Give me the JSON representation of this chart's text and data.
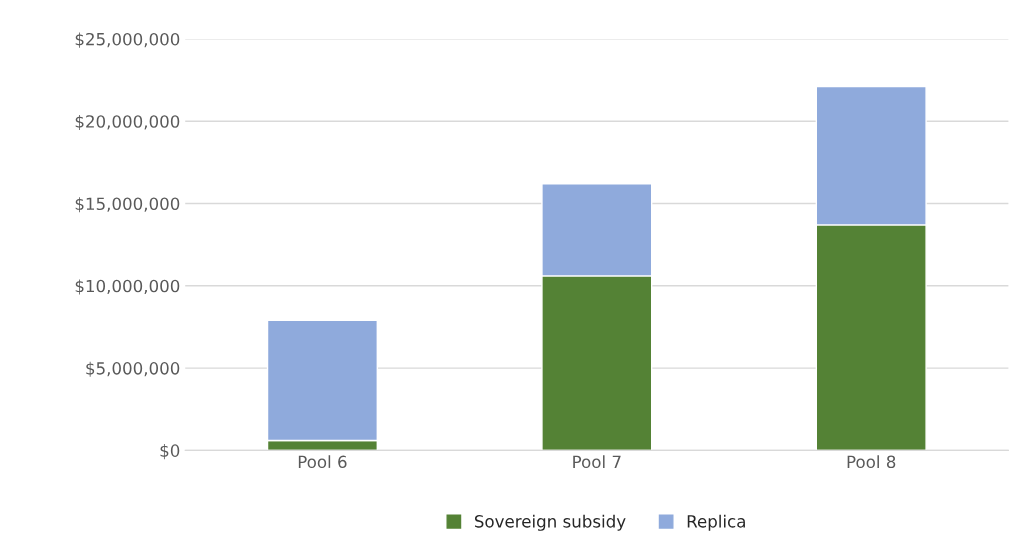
{
  "chart_data": {
    "type": "bar",
    "stacked": true,
    "categories": [
      "Pool 6",
      "Pool 7",
      "Pool 8"
    ],
    "series": [
      {
        "name": "Sovereign subsidy",
        "color": "#548235",
        "values": [
          600000,
          10600000,
          13700000
        ]
      },
      {
        "name": "Replica",
        "color": "#8faadc",
        "values": [
          7300000,
          5600000,
          8400000
        ]
      }
    ],
    "ylim": [
      0,
      25000000
    ],
    "yticks": [
      {
        "value": 0,
        "label": "$0"
      },
      {
        "value": 5000000,
        "label": "$5,000,000"
      },
      {
        "value": 10000000,
        "label": "$10,000,000"
      },
      {
        "value": 15000000,
        "label": "$15,000,000"
      },
      {
        "value": 20000000,
        "label": "$20,000,000"
      },
      {
        "value": 25000000,
        "label": "$25,000,000"
      }
    ],
    "grid": "y",
    "legend": "bottom"
  }
}
